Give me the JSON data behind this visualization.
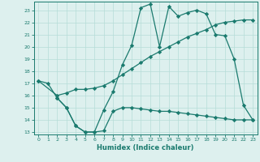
{
  "line1_x": [
    0,
    1,
    2,
    3,
    4,
    5,
    6,
    7,
    8,
    9,
    10,
    11,
    12,
    13,
    14,
    15,
    16,
    17,
    18,
    19,
    20,
    21,
    22,
    23
  ],
  "line1_y": [
    17.2,
    17.0,
    15.8,
    15.0,
    13.5,
    13.0,
    13.0,
    14.8,
    16.3,
    18.5,
    20.1,
    23.2,
    23.5,
    20.0,
    23.3,
    22.5,
    22.8,
    23.0,
    22.7,
    21.0,
    20.9,
    19.0,
    15.2,
    14.0
  ],
  "line2_x": [
    0,
    2,
    3,
    4,
    5,
    6,
    7,
    8,
    9,
    10,
    11,
    12,
    13,
    14,
    15,
    16,
    17,
    18,
    19,
    20,
    21,
    22,
    23
  ],
  "line2_y": [
    17.2,
    16.0,
    16.2,
    16.5,
    16.5,
    16.6,
    16.8,
    17.2,
    17.7,
    18.2,
    18.7,
    19.2,
    19.6,
    20.0,
    20.4,
    20.8,
    21.1,
    21.4,
    21.8,
    22.0,
    22.1,
    22.2,
    22.2
  ],
  "line3_x": [
    2,
    3,
    4,
    5,
    6,
    7,
    8,
    9,
    10,
    11,
    12,
    13,
    14,
    15,
    16,
    17,
    18,
    19,
    20,
    21,
    22,
    23
  ],
  "line3_y": [
    15.8,
    15.0,
    13.5,
    13.0,
    13.0,
    13.1,
    14.7,
    15.0,
    15.0,
    14.9,
    14.8,
    14.7,
    14.7,
    14.6,
    14.5,
    14.4,
    14.3,
    14.2,
    14.1,
    14.0,
    14.0,
    14.0
  ],
  "color": "#1a7a6e",
  "bg_color": "#ddf0ee",
  "grid_color": "#b5ddd8",
  "xlabel": "Humidex (Indice chaleur)",
  "xlim": [
    -0.5,
    23.5
  ],
  "ylim": [
    12.8,
    23.7
  ],
  "yticks": [
    13,
    14,
    15,
    16,
    17,
    18,
    19,
    20,
    21,
    22,
    23
  ],
  "xticks": [
    0,
    1,
    2,
    3,
    4,
    5,
    6,
    7,
    8,
    9,
    10,
    11,
    12,
    13,
    14,
    15,
    16,
    17,
    18,
    19,
    20,
    21,
    22,
    23
  ],
  "marker": "D",
  "markersize": 2.2,
  "linewidth": 0.9
}
